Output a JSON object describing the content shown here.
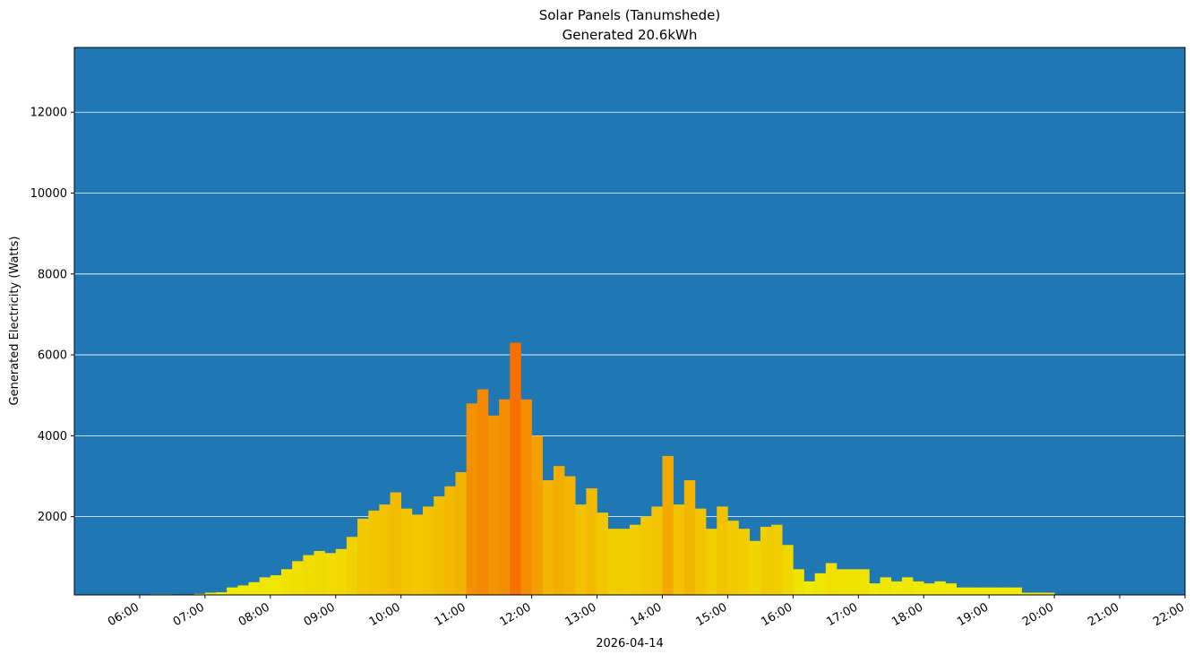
{
  "chart_data": {
    "type": "bar",
    "title": "Solar Panels (Tanumshede)",
    "subtitle": "Generated 20.6kWh",
    "y_label": "Generated Electricity (Watts)",
    "x_label": "2026-04-14",
    "background": "#1f77b4",
    "grid": true,
    "grid_color": "#ffffff",
    "color_low": "#f0f000",
    "color_high": "#f57000",
    "x": [
      "06:00",
      "06:10",
      "06:20",
      "06:30",
      "06:40",
      "06:50",
      "07:00",
      "07:10",
      "07:20",
      "07:30",
      "07:40",
      "07:50",
      "08:00",
      "08:10",
      "08:20",
      "08:30",
      "08:40",
      "08:50",
      "09:00",
      "09:10",
      "09:20",
      "09:30",
      "09:40",
      "09:50",
      "10:00",
      "10:10",
      "10:20",
      "10:30",
      "10:40",
      "10:50",
      "11:00",
      "11:10",
      "11:20",
      "11:30",
      "11:40",
      "11:50",
      "12:00",
      "12:10",
      "12:20",
      "12:30",
      "12:40",
      "12:50",
      "13:00",
      "13:10",
      "13:20",
      "13:30",
      "13:40",
      "13:50",
      "14:00",
      "14:10",
      "14:20",
      "14:30",
      "14:40",
      "14:50",
      "15:00",
      "15:10",
      "15:20",
      "15:30",
      "15:40",
      "15:50",
      "16:00",
      "16:10",
      "16:20",
      "16:30",
      "16:40",
      "16:50",
      "17:00",
      "17:10",
      "17:20",
      "17:30",
      "17:40",
      "17:50",
      "18:00",
      "18:10",
      "18:20",
      "18:30",
      "18:40",
      "18:50",
      "19:00",
      "19:10",
      "19:20",
      "19:30",
      "19:40",
      "19:50"
    ],
    "values": [
      60,
      80,
      80,
      70,
      60,
      90,
      120,
      130,
      250,
      300,
      380,
      500,
      550,
      700,
      900,
      1050,
      1150,
      1100,
      1200,
      1500,
      1950,
      2150,
      2300,
      2600,
      2200,
      2050,
      2250,
      2500,
      2750,
      3100,
      4800,
      5150,
      4500,
      4900,
      6300,
      4900,
      4000,
      2900,
      3250,
      3000,
      2300,
      2700,
      2100,
      1700,
      1700,
      1800,
      2000,
      2250,
      3500,
      2300,
      2900,
      2200,
      1700,
      2250,
      1900,
      1700,
      1400,
      1750,
      1800,
      1300,
      700,
      400,
      600,
      850,
      700,
      700,
      700,
      350,
      500,
      400,
      500,
      400,
      350,
      400,
      350,
      250,
      250,
      250,
      250,
      250,
      250,
      120,
      120,
      120
    ],
    "xlim": [
      "05:00",
      "22:00"
    ],
    "xticks": [
      "06:00",
      "07:00",
      "08:00",
      "09:00",
      "10:00",
      "11:00",
      "12:00",
      "13:00",
      "14:00",
      "15:00",
      "16:00",
      "17:00",
      "18:00",
      "19:00",
      "20:00",
      "21:00",
      "22:00"
    ],
    "ylim": [
      65,
      13600
    ],
    "yticks": [
      2000,
      4000,
      6000,
      8000,
      10000,
      12000
    ]
  }
}
